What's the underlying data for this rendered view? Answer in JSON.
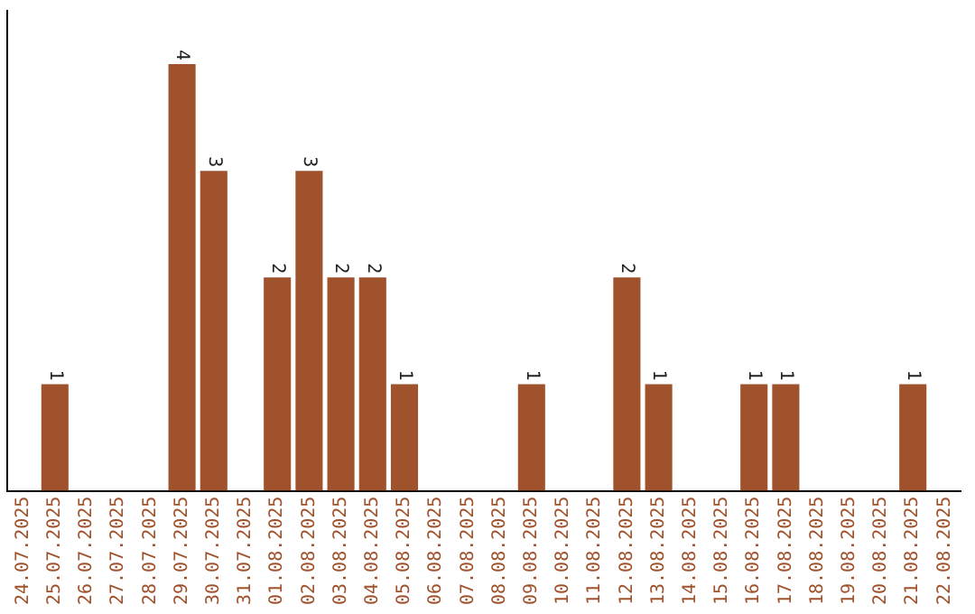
{
  "chart_data": {
    "type": "bar",
    "categories": [
      "24.07.2025",
      "25.07.2025",
      "26.07.2025",
      "27.07.2025",
      "28.07.2025",
      "29.07.2025",
      "30.07.2025",
      "31.07.2025",
      "01.08.2025",
      "02.08.2025",
      "03.08.2025",
      "04.08.2025",
      "05.08.2025",
      "06.08.2025",
      "07.08.2025",
      "08.08.2025",
      "09.08.2025",
      "10.08.2025",
      "11.08.2025",
      "12.08.2025",
      "13.08.2025",
      "14.08.2025",
      "15.08.2025",
      "16.08.2025",
      "17.08.2025",
      "18.08.2025",
      "19.08.2025",
      "20.08.2025",
      "21.08.2025",
      "22.08.2025"
    ],
    "values": [
      0,
      1,
      0,
      0,
      0,
      4,
      3,
      0,
      2,
      3,
      2,
      2,
      1,
      0,
      0,
      0,
      1,
      0,
      0,
      2,
      1,
      0,
      0,
      1,
      1,
      0,
      0,
      0,
      1,
      0
    ],
    "value_labels": [
      null,
      "1",
      null,
      null,
      null,
      "4",
      "3",
      null,
      "2",
      "3",
      "2",
      "2",
      "1",
      null,
      null,
      null,
      "1",
      null,
      null,
      "2",
      "1",
      null,
      null,
      "1",
      "1",
      null,
      null,
      null,
      "1",
      null
    ],
    "color": "#a0522d",
    "tick_labels": "x",
    "grid": false,
    "legend": false
  }
}
